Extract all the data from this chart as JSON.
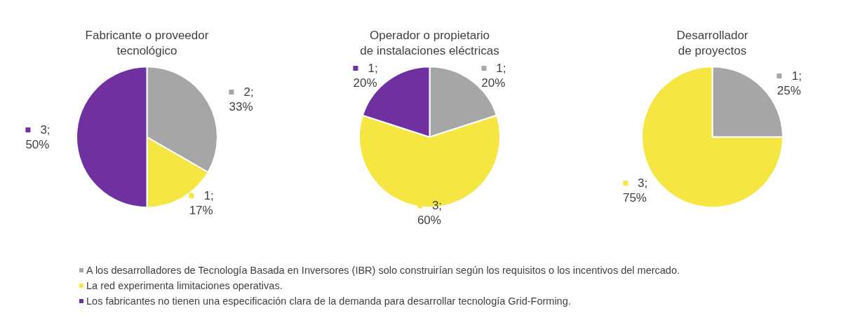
{
  "chart_data": [
    {
      "type": "pie",
      "title": "Fabricante o proveedor\ntecnológico",
      "categories": [
        "A los desarrolladores de Tecnología Basada en Inversores (IBR) solo construirían según los requisitos o los incentivos del mercado.",
        "La red experimenta limitaciones operativas.",
        "Los fabricantes no tienen una especificación clara de la demanda para desarrollar tecnología Grid-Forming."
      ],
      "values": [
        2,
        1,
        3
      ],
      "colors": [
        "#a6a6a6",
        "#f5e642",
        "#7030a0"
      ],
      "value_labels": [
        "2; 33%",
        "1; 17%",
        "3; 50%"
      ],
      "legend": "bottom"
    },
    {
      "type": "pie",
      "title": "Operador o propietario\nde instalaciones eléctricas",
      "categories": [
        null,
        null,
        null
      ],
      "values": [
        1,
        3,
        1
      ],
      "colors": [
        "#a6a6a6",
        "#f5e642",
        "#7030a0"
      ],
      "value_labels": [
        "1; 20%",
        "3; 60%",
        "1; 20%"
      ]
    },
    {
      "type": "pie",
      "title": "Desarrollador\nde proyectos",
      "categories": [
        null,
        null
      ],
      "values": [
        1,
        3
      ],
      "colors": [
        "#a6a6a6",
        "#f5e642"
      ],
      "value_labels": [
        "1; 25%",
        "3; 75%"
      ]
    }
  ]
}
